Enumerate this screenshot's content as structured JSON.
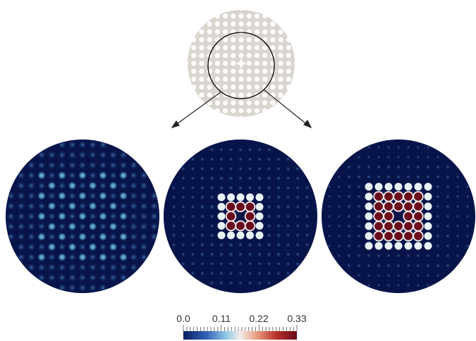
{
  "figure": {
    "background": "#ffffff",
    "geometry_panel": {
      "fill_color": "#d9d5cf",
      "hole_color": "#ffffff",
      "outline_color": "#000000"
    },
    "arrows": [
      "left-arrow",
      "right-arrow"
    ],
    "panels": [
      {
        "name": "panel-left",
        "description": "uniform field"
      },
      {
        "name": "panel-middle",
        "description": "central 3x3 peak"
      },
      {
        "name": "panel-right",
        "description": "central 5x5 peak"
      }
    ]
  },
  "colorbar": {
    "ticks": [
      "0.0",
      "0.11",
      "0.22",
      "0.33"
    ],
    "min": 0.0,
    "max": 0.33,
    "colors": [
      "#0b1f5e",
      "#2f5fb3",
      "#93c9e8",
      "#f2ede8",
      "#e89a7c",
      "#b8302b",
      "#6a0a1c"
    ],
    "background_field_color": "#07144a"
  }
}
